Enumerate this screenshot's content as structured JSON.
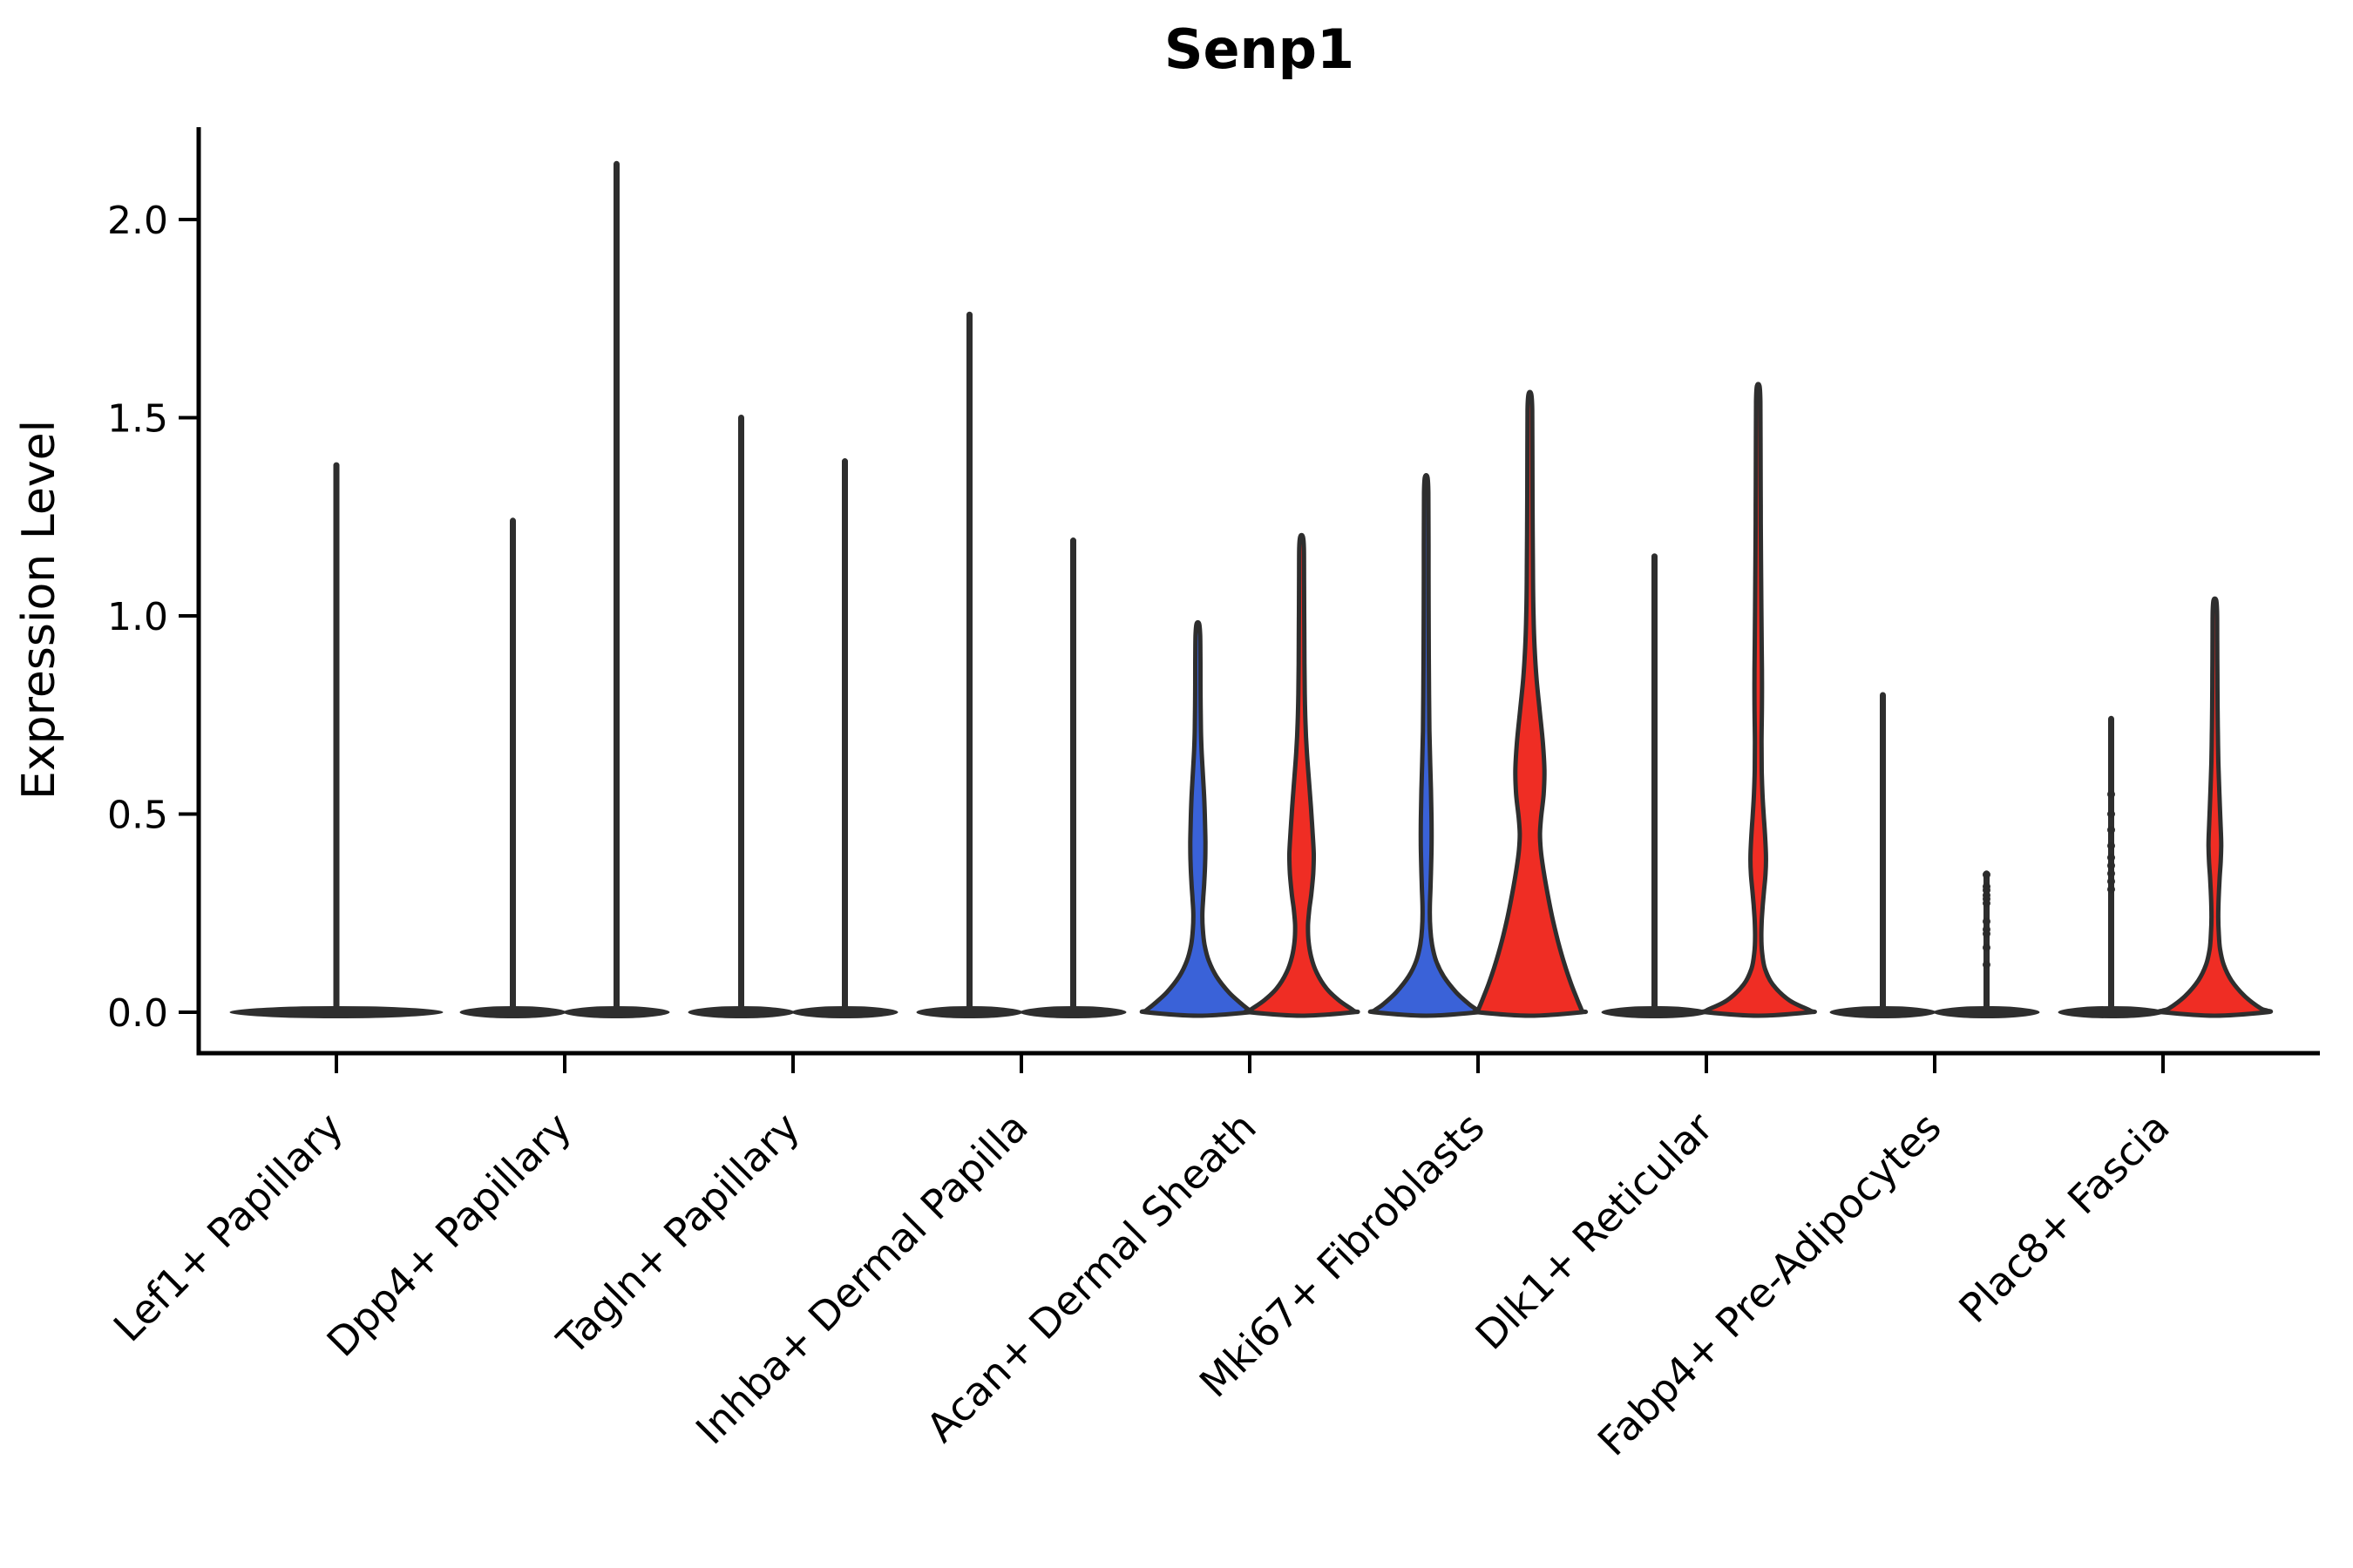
{
  "chart_data": {
    "type": "violin",
    "title": "Senp1",
    "ylabel": "Expression Level",
    "xlabel": "",
    "grid": false,
    "legend_position": "none",
    "ylim": [
      -0.105,
      2.23
    ],
    "ytick_labels": [
      "0.0",
      "0.5",
      "1.0",
      "1.5",
      "2.0"
    ],
    "ytick_values": [
      0.0,
      0.5,
      1.0,
      1.5,
      2.0
    ],
    "categories": [
      "Lef1+ Papillary",
      "Dpp4+ Papillary",
      "Tagln+ Papillary",
      "Inhba+ Dermal Papilla",
      "Acan+ Dermal Sheath",
      "Mki67+ Fibroblasts",
      "Dlk1+ Reticular",
      "Fabp4+ Pre-Adipocytes",
      "Plac8+ Fascia"
    ],
    "colors": {
      "group1_blue": "#3A62D8",
      "group2_red": "#EF2D24",
      "outline": "#2E2E2E",
      "axis": "#000000",
      "text": "#000000",
      "background": "#FFFFFF"
    },
    "violins": [
      {
        "category": 0,
        "slot": "center",
        "fill": "none",
        "kind": "spike",
        "max": 1.38
      },
      {
        "category": 1,
        "slot": "left",
        "fill": "none",
        "kind": "spike",
        "max": 1.24
      },
      {
        "category": 1,
        "slot": "right",
        "fill": "none",
        "kind": "spike",
        "max": 2.14
      },
      {
        "category": 2,
        "slot": "left",
        "fill": "none",
        "kind": "spike",
        "max": 1.5
      },
      {
        "category": 2,
        "slot": "right",
        "fill": "none",
        "kind": "spike",
        "max": 1.39
      },
      {
        "category": 3,
        "slot": "left",
        "fill": "none",
        "kind": "spike",
        "max": 1.76
      },
      {
        "category": 3,
        "slot": "right",
        "fill": "none",
        "kind": "spike",
        "max": 1.19
      },
      {
        "category": 4,
        "slot": "left",
        "fill": "group1_blue",
        "kind": "violin",
        "max": 0.98,
        "profile": [
          [
            0.98,
            0
          ],
          [
            0.95,
            0.045
          ],
          [
            0.88,
            0.05
          ],
          [
            0.8,
            0.052
          ],
          [
            0.72,
            0.058
          ],
          [
            0.66,
            0.072
          ],
          [
            0.6,
            0.098
          ],
          [
            0.54,
            0.122
          ],
          [
            0.48,
            0.138
          ],
          [
            0.43,
            0.146
          ],
          [
            0.38,
            0.142
          ],
          [
            0.33,
            0.125
          ],
          [
            0.29,
            0.105
          ],
          [
            0.25,
            0.088
          ],
          [
            0.21,
            0.095
          ],
          [
            0.17,
            0.13
          ],
          [
            0.13,
            0.21
          ],
          [
            0.09,
            0.36
          ],
          [
            0.05,
            0.6
          ],
          [
            0.02,
            0.85
          ],
          [
            0,
            1
          ]
        ]
      },
      {
        "category": 4,
        "slot": "right",
        "fill": "group2_red",
        "kind": "violin",
        "max": 1.2,
        "profile": [
          [
            1.2,
            0
          ],
          [
            1.17,
            0.045
          ],
          [
            1.08,
            0.048
          ],
          [
            0.98,
            0.052
          ],
          [
            0.88,
            0.056
          ],
          [
            0.8,
            0.062
          ],
          [
            0.73,
            0.075
          ],
          [
            0.66,
            0.1
          ],
          [
            0.59,
            0.14
          ],
          [
            0.52,
            0.18
          ],
          [
            0.46,
            0.21
          ],
          [
            0.4,
            0.235
          ],
          [
            0.35,
            0.225
          ],
          [
            0.3,
            0.19
          ],
          [
            0.26,
            0.15
          ],
          [
            0.22,
            0.125
          ],
          [
            0.18,
            0.135
          ],
          [
            0.14,
            0.185
          ],
          [
            0.1,
            0.29
          ],
          [
            0.06,
            0.48
          ],
          [
            0.03,
            0.72
          ],
          [
            0,
            1
          ]
        ]
      },
      {
        "category": 5,
        "slot": "left",
        "fill": "group1_blue",
        "kind": "violin",
        "max": 1.35,
        "profile": [
          [
            1.35,
            0
          ],
          [
            1.31,
            0.042
          ],
          [
            1.18,
            0.045
          ],
          [
            1.02,
            0.047
          ],
          [
            0.9,
            0.05
          ],
          [
            0.8,
            0.055
          ],
          [
            0.71,
            0.063
          ],
          [
            0.63,
            0.078
          ],
          [
            0.56,
            0.092
          ],
          [
            0.49,
            0.102
          ],
          [
            0.43,
            0.105
          ],
          [
            0.37,
            0.096
          ],
          [
            0.31,
            0.082
          ],
          [
            0.26,
            0.07
          ],
          [
            0.21,
            0.08
          ],
          [
            0.17,
            0.115
          ],
          [
            0.13,
            0.19
          ],
          [
            0.09,
            0.34
          ],
          [
            0.05,
            0.58
          ],
          [
            0.02,
            0.83
          ],
          [
            0,
            1
          ]
        ]
      },
      {
        "category": 5,
        "slot": "right",
        "fill": "group2_red",
        "kind": "violin",
        "max": 1.56,
        "profile": [
          [
            1.56,
            0
          ],
          [
            1.52,
            0.045
          ],
          [
            1.4,
            0.048
          ],
          [
            1.26,
            0.052
          ],
          [
            1.12,
            0.058
          ],
          [
            1.0,
            0.07
          ],
          [
            0.92,
            0.09
          ],
          [
            0.84,
            0.13
          ],
          [
            0.76,
            0.19
          ],
          [
            0.68,
            0.25
          ],
          [
            0.61,
            0.28
          ],
          [
            0.55,
            0.265
          ],
          [
            0.49,
            0.215
          ],
          [
            0.45,
            0.195
          ],
          [
            0.41,
            0.21
          ],
          [
            0.36,
            0.26
          ],
          [
            0.3,
            0.34
          ],
          [
            0.24,
            0.43
          ],
          [
            0.18,
            0.54
          ],
          [
            0.12,
            0.67
          ],
          [
            0.07,
            0.8
          ],
          [
            0.03,
            0.92
          ],
          [
            0,
            1
          ]
        ]
      },
      {
        "category": 6,
        "slot": "left",
        "fill": "none",
        "kind": "spike",
        "max": 1.15
      },
      {
        "category": 6,
        "slot": "right",
        "fill": "group2_red",
        "kind": "violin",
        "max": 1.58,
        "profile": [
          [
            1.58,
            0
          ],
          [
            1.54,
            0.042
          ],
          [
            1.42,
            0.045
          ],
          [
            1.28,
            0.048
          ],
          [
            1.14,
            0.053
          ],
          [
            1.02,
            0.06
          ],
          [
            0.92,
            0.068
          ],
          [
            0.84,
            0.073
          ],
          [
            0.76,
            0.07
          ],
          [
            0.68,
            0.064
          ],
          [
            0.61,
            0.068
          ],
          [
            0.55,
            0.082
          ],
          [
            0.49,
            0.11
          ],
          [
            0.44,
            0.135
          ],
          [
            0.39,
            0.15
          ],
          [
            0.35,
            0.142
          ],
          [
            0.31,
            0.115
          ],
          [
            0.27,
            0.088
          ],
          [
            0.23,
            0.068
          ],
          [
            0.19,
            0.06
          ],
          [
            0.15,
            0.075
          ],
          [
            0.11,
            0.13
          ],
          [
            0.07,
            0.28
          ],
          [
            0.03,
            0.6
          ],
          [
            0,
            1
          ]
        ]
      },
      {
        "category": 7,
        "slot": "left",
        "fill": "none",
        "kind": "spike",
        "max": 0.8
      },
      {
        "category": 7,
        "slot": "right",
        "fill": "none",
        "kind": "spike",
        "max": 0.35,
        "dots": [
          0.347,
          0.317,
          0.308,
          0.295,
          0.286,
          0.275,
          0.229,
          0.209,
          0.198,
          0.163,
          0.12
        ]
      },
      {
        "category": 8,
        "slot": "left",
        "fill": "none",
        "kind": "spike",
        "max": 0.74,
        "dots": [
          0.55,
          0.5,
          0.46,
          0.42,
          0.39,
          0.37,
          0.35,
          0.33,
          0.31
        ]
      },
      {
        "category": 8,
        "slot": "right",
        "fill": "group2_red",
        "kind": "violin",
        "max": 1.04,
        "profile": [
          [
            1.04,
            0
          ],
          [
            1.01,
            0.042
          ],
          [
            0.93,
            0.045
          ],
          [
            0.85,
            0.048
          ],
          [
            0.77,
            0.052
          ],
          [
            0.7,
            0.058
          ],
          [
            0.63,
            0.068
          ],
          [
            0.57,
            0.082
          ],
          [
            0.51,
            0.1
          ],
          [
            0.46,
            0.115
          ],
          [
            0.42,
            0.122
          ],
          [
            0.38,
            0.112
          ],
          [
            0.34,
            0.092
          ],
          [
            0.29,
            0.074
          ],
          [
            0.24,
            0.066
          ],
          [
            0.2,
            0.075
          ],
          [
            0.16,
            0.1
          ],
          [
            0.12,
            0.17
          ],
          [
            0.08,
            0.32
          ],
          [
            0.04,
            0.58
          ],
          [
            0.01,
            0.88
          ],
          [
            0,
            1
          ]
        ]
      }
    ]
  }
}
